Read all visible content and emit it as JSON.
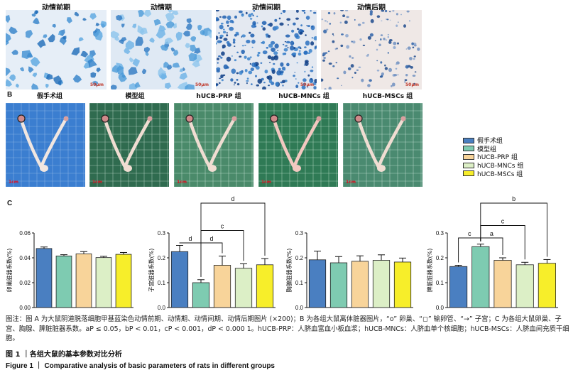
{
  "panel_a": {
    "letter": "A",
    "titles": [
      "动情前期",
      "动情期",
      "动情间期",
      "动情后期"
    ],
    "scale": [
      "50μm",
      "50μm",
      "50μm",
      "50μm"
    ]
  },
  "panel_b": {
    "letter": "B",
    "titles": [
      "假手术组",
      "模型组",
      "hUCB-PRP 组",
      "hUCB-MNCs 组",
      "hUCB-MSCs 组"
    ],
    "scale": [
      "1cm",
      "1cm",
      "1cm",
      "1cm",
      "1cm"
    ]
  },
  "panel_c": {
    "letter": "C"
  },
  "legend": {
    "items": [
      {
        "label": "假手术组",
        "color": "#4a7fc1"
      },
      {
        "label": "模型组",
        "color": "#7ecbb1"
      },
      {
        "label": "hUCB-PRP 组",
        "color": "#f8d49a"
      },
      {
        "label": "hUCB-MNCs 组",
        "color": "#dcefc6"
      },
      {
        "label": "hUCB-MSCs 组",
        "color": "#f7ee2a"
      }
    ]
  },
  "chart_data": [
    {
      "type": "bar",
      "ylabel": "卵巢脏器系数(%)",
      "ylim": [
        0,
        0.06
      ],
      "yticks": [
        "0.00",
        "0.02",
        "0.04",
        "0.06"
      ],
      "values": [
        0.0475,
        0.0415,
        0.0432,
        0.0402,
        0.0428
      ],
      "errors": [
        0.0012,
        0.001,
        0.0018,
        0.001,
        0.0015
      ],
      "brackets": []
    },
    {
      "type": "bar",
      "ylabel": "子宫脏器系数(%)",
      "ylim": [
        0,
        0.3
      ],
      "yticks": [
        "0.0",
        "0.1",
        "0.2",
        "0.3"
      ],
      "values": [
        0.225,
        0.1,
        0.17,
        0.158,
        0.172
      ],
      "errors": [
        0.025,
        0.012,
        0.037,
        0.018,
        0.025
      ],
      "brackets": [
        {
          "from": 0,
          "to": 1,
          "y": 0.26,
          "label": "d"
        },
        {
          "from": 1,
          "to": 2,
          "y": 0.26,
          "label": "d"
        },
        {
          "from": 1,
          "to": 3,
          "y": 0.31,
          "label": "c"
        },
        {
          "from": 1,
          "to": 4,
          "y": 0.42,
          "label": "d"
        }
      ]
    },
    {
      "type": "bar",
      "ylabel": "胸腺脏器系数(%)",
      "ylim": [
        0,
        0.3
      ],
      "yticks": [
        "0.0",
        "0.1",
        "0.2",
        "0.3"
      ],
      "values": [
        0.192,
        0.18,
        0.186,
        0.19,
        0.183
      ],
      "errors": [
        0.035,
        0.025,
        0.022,
        0.022,
        0.016
      ],
      "brackets": []
    },
    {
      "type": "bar",
      "ylabel": "脾脏脏器系数(%)",
      "ylim": [
        0,
        0.3
      ],
      "yticks": [
        "0.0",
        "0.1",
        "0.2",
        "0.3"
      ],
      "values": [
        0.165,
        0.245,
        0.19,
        0.172,
        0.178
      ],
      "errors": [
        0.005,
        0.01,
        0.01,
        0.01,
        0.015
      ],
      "brackets": [
        {
          "from": 0,
          "to": 1,
          "y": 0.28,
          "label": "c"
        },
        {
          "from": 1,
          "to": 2,
          "y": 0.28,
          "label": "a"
        },
        {
          "from": 1,
          "to": 3,
          "y": 0.33,
          "label": "c"
        },
        {
          "from": 1,
          "to": 4,
          "y": 0.42,
          "label": "b"
        }
      ]
    }
  ],
  "caption": {
    "text": "图注：图 A 为大鼠阴道脱落细胞甲基蓝染色动情前期、动情期、动情间期、动情后期图片 (×200)；B 为各组大鼠离体脏器图片，“o” 卵巢、“◻” 输卵管、“→” 子宫；C 为各组大鼠卵巢、子宫、胸腺、脾脏脏器系数。aP ≤ 0.05，bP < 0.01，cP < 0.001，dP < 0.000 1。hUCB-PRP：人脐血富血小板血浆；hUCB-MNCs：人脐血单个核细胞；hUCB-MSCs：人脐血间充质干细胞。",
    "title_zh": "图 1 ｜各组大鼠的基本参数对比分析",
    "title_en": "Figure 1 ｜ Comparative analysis of basic parameters of rats in different groups"
  }
}
